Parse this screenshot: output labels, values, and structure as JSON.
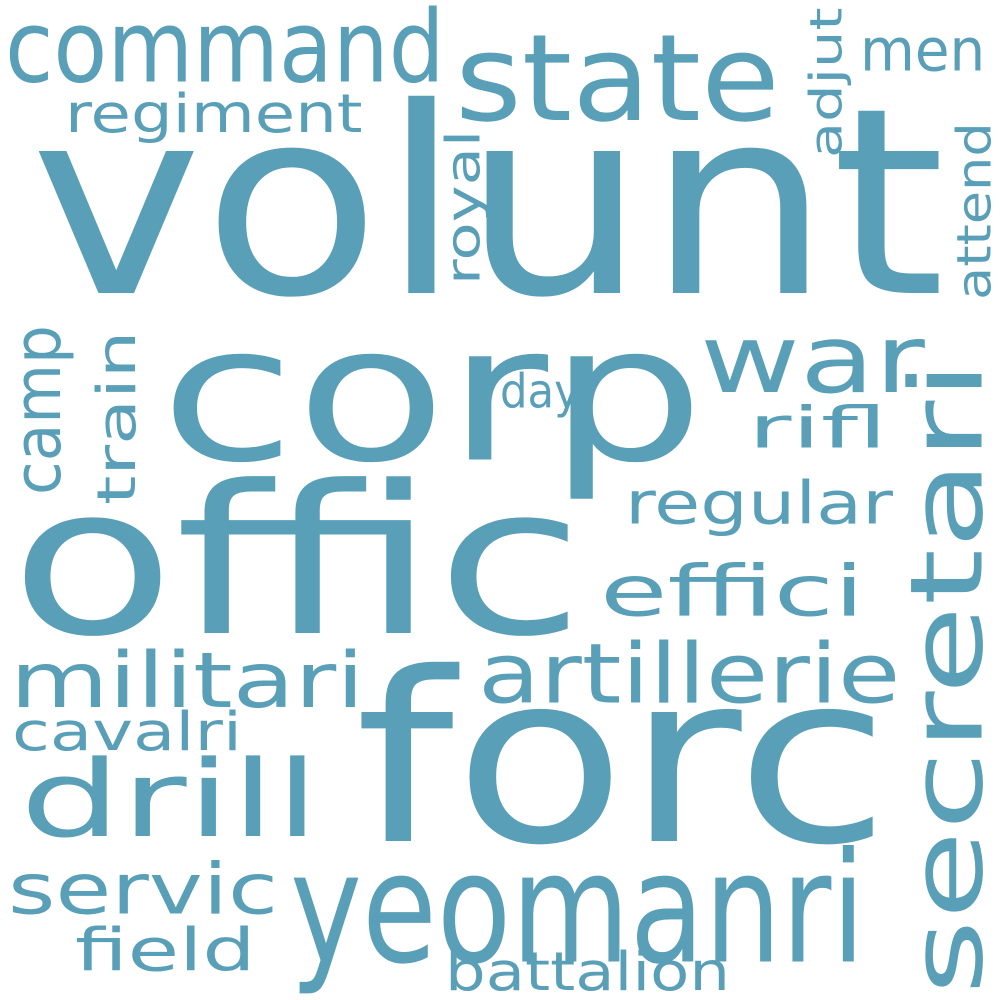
{
  "word_cloud": {
    "text_color": "#5a9fb8",
    "background_color": "#ffffff",
    "words": [
      {
        "id": "volunt",
        "text": "volunt",
        "vertical": false
      },
      {
        "id": "corp",
        "text": "corp",
        "vertical": false
      },
      {
        "id": "offic",
        "text": "offic",
        "vertical": false
      },
      {
        "id": "forc",
        "text": "forc",
        "vertical": false
      },
      {
        "id": "secretari",
        "text": "secretari",
        "vertical": true
      },
      {
        "id": "yeomanri",
        "text": "yeomanri",
        "vertical": false
      },
      {
        "id": "state",
        "text": "state",
        "vertical": false
      },
      {
        "id": "command",
        "text": "command",
        "vertical": false
      },
      {
        "id": "war",
        "text": "war",
        "vertical": false
      },
      {
        "id": "drill",
        "text": "drill",
        "vertical": false
      },
      {
        "id": "artillerie",
        "text": "artillerie",
        "vertical": false
      },
      {
        "id": "militari",
        "text": "militari",
        "vertical": false
      },
      {
        "id": "effici",
        "text": "effici",
        "vertical": false
      },
      {
        "id": "servic",
        "text": "servic",
        "vertical": false
      },
      {
        "id": "regular",
        "text": "regular",
        "vertical": false
      },
      {
        "id": "regiment",
        "text": "regiment",
        "vertical": false
      },
      {
        "id": "camp",
        "text": "camp",
        "vertical": true
      },
      {
        "id": "men",
        "text": "men",
        "vertical": false
      },
      {
        "id": "field",
        "text": "field",
        "vertical": false
      },
      {
        "id": "battalion",
        "text": "battalion",
        "vertical": false
      },
      {
        "id": "cavalri",
        "text": "cavalri",
        "vertical": false
      },
      {
        "id": "rifl",
        "text": "rifl",
        "vertical": false
      },
      {
        "id": "royal",
        "text": "royal",
        "vertical": true
      },
      {
        "id": "train",
        "text": "train",
        "vertical": true
      },
      {
        "id": "attend",
        "text": "attend",
        "vertical": true
      },
      {
        "id": "adjut",
        "text": "adjut",
        "vertical": true
      },
      {
        "id": "day",
        "text": "day",
        "vertical": false
      }
    ]
  }
}
